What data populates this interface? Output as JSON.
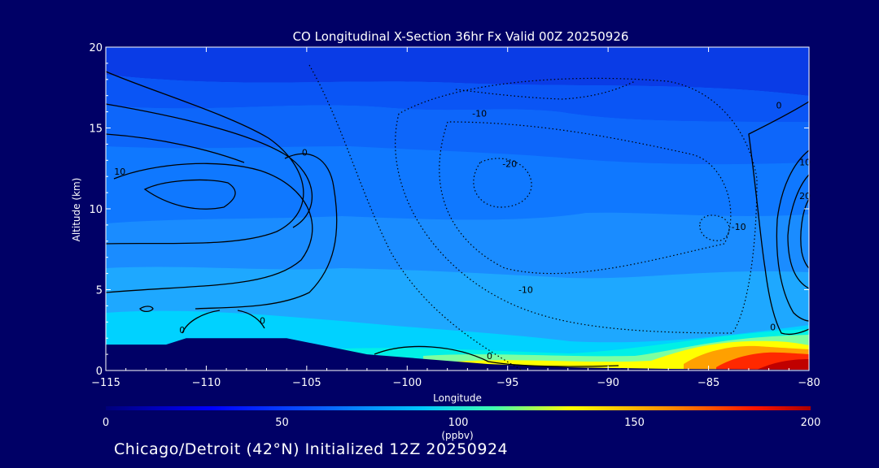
{
  "chart_data": {
    "type": "heatmap",
    "title": "CO Longitudinal X-Section 36hr  Fx Valid 00Z 20250926",
    "xlabel": "Longitude",
    "ylabel": "Altitude (km)",
    "xlim": [
      -115,
      -80
    ],
    "ylim": [
      0,
      20
    ],
    "x_ticks": [
      -115,
      -110,
      -105,
      -100,
      -95,
      -90,
      -85,
      -80
    ],
    "x_tick_labels": [
      "−115",
      "−110",
      "−105",
      "−100",
      "−95",
      "−90",
      "−85",
      "−80"
    ],
    "y_ticks": [
      0,
      5,
      10,
      15,
      20
    ],
    "y_tick_labels": [
      "0",
      "5",
      "10",
      "15",
      "20"
    ],
    "colorbar": {
      "label": "(ppbv)",
      "range": [
        0,
        200
      ],
      "ticks": [
        0,
        50,
        100,
        150,
        200
      ],
      "tick_labels": [
        "0",
        "50",
        "100",
        "150",
        "200"
      ]
    },
    "contour_labels": [
      {
        "text": "10",
        "lon": -114.3,
        "alt": 12.1
      },
      {
        "text": "0",
        "lon": -105.1,
        "alt": 13.3
      },
      {
        "text": "-10",
        "lon": -96.4,
        "alt": 15.7
      },
      {
        "text": "-20",
        "lon": -94.9,
        "alt": 12.6
      },
      {
        "text": "-10",
        "lon": -94.1,
        "alt": 4.8
      },
      {
        "text": "-10",
        "lon": -83.5,
        "alt": 8.7
      },
      {
        "text": "0",
        "lon": -81.5,
        "alt": 16.2
      },
      {
        "text": "10",
        "lon": -80.2,
        "alt": 12.7
      },
      {
        "text": "20",
        "lon": -80.2,
        "alt": 10.6
      },
      {
        "text": "0",
        "lon": -111.2,
        "alt": 2.3
      },
      {
        "text": "0",
        "lon": -107.2,
        "alt": 2.9
      },
      {
        "text": "0",
        "lon": -95.9,
        "alt": 0.7
      },
      {
        "text": "0",
        "lon": -81.8,
        "alt": 2.5
      }
    ],
    "terrain_profile": [
      {
        "lon": -115,
        "alt": 1.6
      },
      {
        "lon": -112,
        "alt": 1.6
      },
      {
        "lon": -111,
        "alt": 2.0
      },
      {
        "lon": -108,
        "alt": 2.0
      },
      {
        "lon": -106,
        "alt": 2.0
      },
      {
        "lon": -104,
        "alt": 1.5
      },
      {
        "lon": -102,
        "alt": 1.0
      },
      {
        "lon": -99,
        "alt": 0.7
      },
      {
        "lon": -96,
        "alt": 0.4
      },
      {
        "lon": -92,
        "alt": 0.2
      },
      {
        "lon": -87,
        "alt": 0.1
      },
      {
        "lon": -80,
        "alt": 0.05
      }
    ]
  },
  "footer": "Chicago/Detroit (42°N) Initialized 12Z 20250924",
  "colors": {
    "background": "#000066",
    "colormap": [
      "#0000c8",
      "#0a3cff",
      "#1a8cff",
      "#00e6ff",
      "#00ffc8",
      "#ffff00",
      "#ff9600",
      "#ff0000",
      "#aa0000"
    ]
  }
}
